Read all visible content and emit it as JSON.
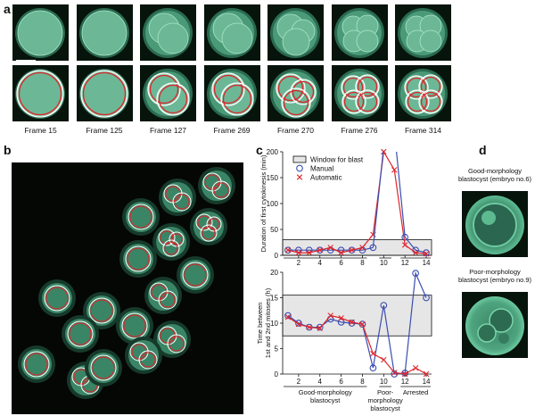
{
  "panels": {
    "a": "a",
    "b": "b",
    "c": "c",
    "d": "d"
  },
  "panel_a": {
    "frames": [
      {
        "label": "Frame 15",
        "cells": 1
      },
      {
        "label": "Frame 125",
        "cells": 1
      },
      {
        "label": "Frame 127",
        "cells": 2
      },
      {
        "label": "Frame 269",
        "cells": 2
      },
      {
        "label": "Frame 270",
        "cells": 3
      },
      {
        "label": "Frame 276",
        "cells": 4
      },
      {
        "label": "Frame 314",
        "cells": 4
      }
    ]
  },
  "panel_d": {
    "good_label_line1": "Good-morphology",
    "good_label_line2": "blastocyst (embryo no.6)",
    "poor_label_line1": "Poor-morphology",
    "poor_label_line2": "blastocyst (embryo no.9)"
  },
  "chart_data": [
    {
      "type": "line",
      "ylabel": "Duration of first cytokinesis (min)",
      "ylim": [
        0,
        200
      ],
      "yticks": [
        0,
        50,
        100,
        150,
        200
      ],
      "xticks": [
        2,
        4,
        6,
        8,
        10,
        12,
        14
      ],
      "x": [
        1,
        2,
        3,
        4,
        5,
        6,
        7,
        8,
        9,
        10,
        11,
        12,
        13,
        14
      ],
      "window": [
        0,
        30
      ],
      "legend": {
        "window": "Window for blast",
        "manual": "Manual",
        "automatic": "Automatic"
      },
      "series": [
        {
          "name": "Manual",
          "values": [
            10,
            10,
            10,
            10,
            10,
            10,
            10,
            10,
            15,
            null,
            null,
            35,
            10,
            5
          ]
        },
        {
          "name": "Automatic",
          "values": [
            10,
            5,
            5,
            10,
            15,
            5,
            10,
            15,
            40,
            200,
            165,
            20,
            5,
            3
          ]
        }
      ]
    },
    {
      "type": "line",
      "ylabel_line1": "Time between",
      "ylabel_line2": "1st and 2nd mitoses (h)",
      "ylim": [
        0,
        20
      ],
      "yticks": [
        0,
        5,
        10,
        15,
        20
      ],
      "xticks": [
        2,
        4,
        6,
        8,
        10,
        12,
        14
      ],
      "x": [
        1,
        2,
        3,
        4,
        5,
        6,
        7,
        8,
        9,
        10,
        11,
        12,
        13,
        14
      ],
      "window": [
        7.5,
        15.5
      ],
      "series": [
        {
          "name": "Manual",
          "values": [
            11.5,
            10,
            9.2,
            9.2,
            10.8,
            10.2,
            10,
            9.8,
            1.2,
            13.5,
            0,
            0.2,
            19.8,
            15
          ]
        },
        {
          "name": "Automatic",
          "values": [
            11.2,
            9.8,
            9.2,
            9,
            11.5,
            11,
            10.2,
            9.8,
            4,
            2.8,
            0.3,
            0,
            1.2,
            0
          ]
        }
      ],
      "groups": [
        {
          "line1": "Good-morphology",
          "line2": "blastocyst",
          "line3": ""
        },
        {
          "line1": "Poor-",
          "line2": "morphology",
          "line3": "blastocyst"
        },
        {
          "line1": "Arrested",
          "line2": "",
          "line3": ""
        }
      ]
    }
  ]
}
